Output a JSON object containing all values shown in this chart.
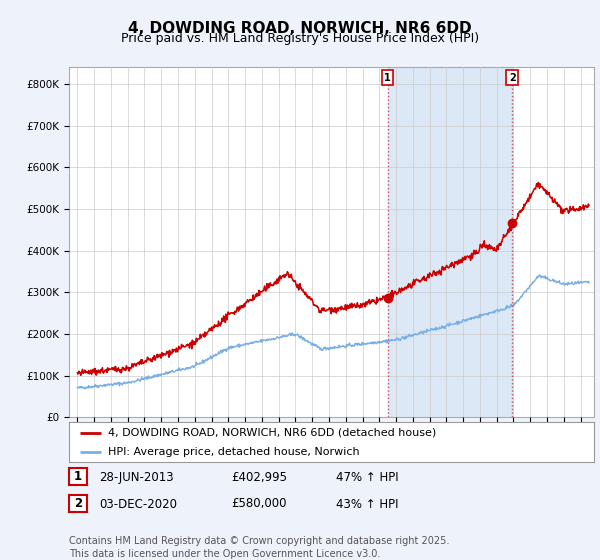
{
  "title": "4, DOWDING ROAD, NORWICH, NR6 6DD",
  "subtitle": "Price paid vs. HM Land Registry's House Price Index (HPI)",
  "ylabel_ticks": [
    "£0",
    "£100K",
    "£200K",
    "£300K",
    "£400K",
    "£500K",
    "£600K",
    "£700K",
    "£800K"
  ],
  "ytick_values": [
    0,
    100000,
    200000,
    300000,
    400000,
    500000,
    600000,
    700000,
    800000
  ],
  "ylim": [
    0,
    840000
  ],
  "xlim_left": 1994.5,
  "xlim_right": 2025.8,
  "line1_color": "#cc0000",
  "line2_color": "#7aafe6",
  "shading_color": "#dce8f5",
  "marker1_date_year": 2013.49,
  "marker2_date_year": 2020.92,
  "marker1_price": 402995,
  "marker2_price": 580000,
  "vline_color": "#cc4444",
  "annotation1_label": "1",
  "annotation2_label": "2",
  "legend_label1": "4, DOWDING ROAD, NORWICH, NR6 6DD (detached house)",
  "legend_label2": "HPI: Average price, detached house, Norwich",
  "table_row1": [
    "1",
    "28-JUN-2013",
    "£402,995",
    "47% ↑ HPI"
  ],
  "table_row2": [
    "2",
    "03-DEC-2020",
    "£580,000",
    "43% ↑ HPI"
  ],
  "footnote": "Contains HM Land Registry data © Crown copyright and database right 2025.\nThis data is licensed under the Open Government Licence v3.0.",
  "background_color": "#eef2fb",
  "plot_bg_color": "#ffffff",
  "grid_color": "#cccccc",
  "title_fontsize": 11,
  "subtitle_fontsize": 9,
  "tick_fontsize": 7.5,
  "legend_fontsize": 8,
  "table_fontsize": 8.5,
  "footnote_fontsize": 7
}
